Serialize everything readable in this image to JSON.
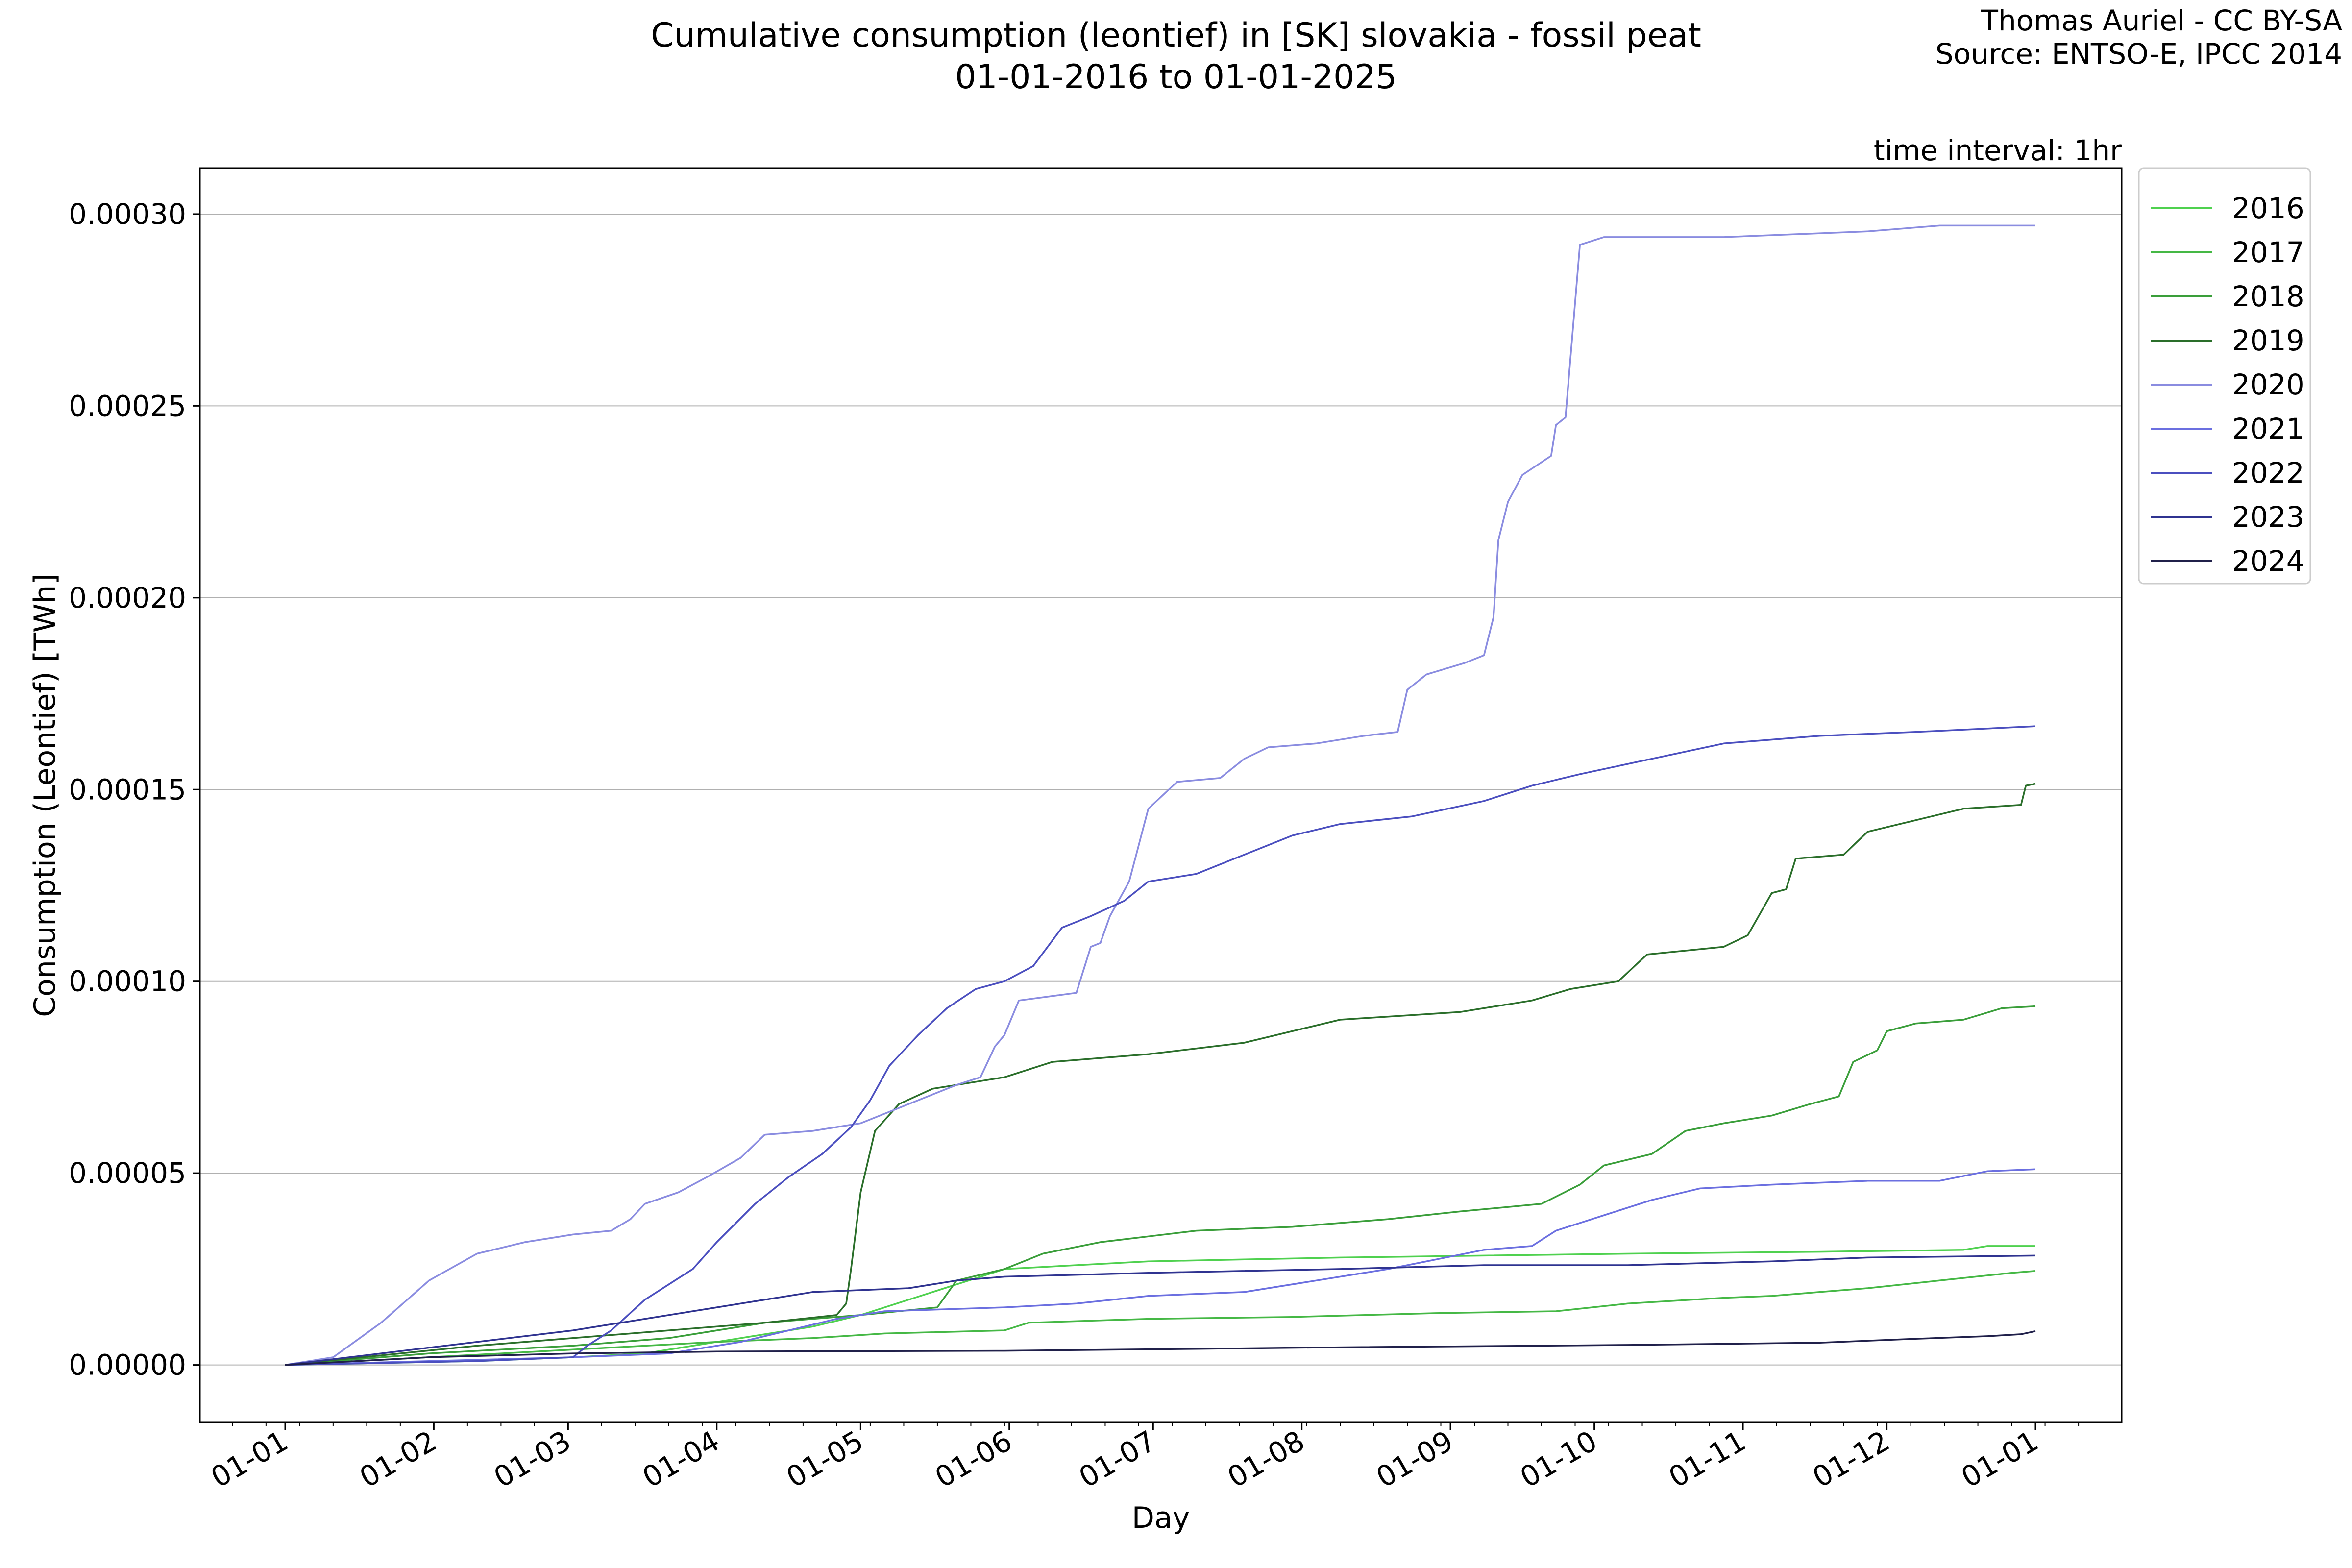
{
  "title_line1": "Cumulative consumption (leontief) in [SK] slovakia - fossil peat",
  "title_line2": "01-01-2016 to 01-01-2025",
  "credit_line1": "Thomas Auriel - CC BY-SA",
  "credit_line2": "Source: ENTSO-E, IPCC 2014",
  "time_interval": "time interval: 1hr",
  "chart_data": {
    "type": "line",
    "xlabel": "Day",
    "ylabel": "Consumption (Leontief) [TWh]",
    "xlim": [
      0,
      365
    ],
    "ylim": [
      -1.5e-05,
      0.000312
    ],
    "grid": "horizontal",
    "legend_position": "outside-right",
    "x_ticks": [
      {
        "label": "01-01",
        "day": 0
      },
      {
        "label": "01-02",
        "day": 31
      },
      {
        "label": "01-03",
        "day": 59
      },
      {
        "label": "01-04",
        "day": 90
      },
      {
        "label": "01-05",
        "day": 120
      },
      {
        "label": "01-06",
        "day": 151
      },
      {
        "label": "01-07",
        "day": 181
      },
      {
        "label": "01-08",
        "day": 212
      },
      {
        "label": "01-09",
        "day": 243
      },
      {
        "label": "01-10",
        "day": 273
      },
      {
        "label": "01-11",
        "day": 304
      },
      {
        "label": "01-12",
        "day": 334
      },
      {
        "label": "01-01",
        "day": 365
      }
    ],
    "y_ticks": [
      {
        "label": "0.00000",
        "value": 0
      },
      {
        "label": "0.00005",
        "value": 5e-05
      },
      {
        "label": "0.00010",
        "value": 0.0001
      },
      {
        "label": "0.00015",
        "value": 0.00015
      },
      {
        "label": "0.00020",
        "value": 0.0002
      },
      {
        "label": "0.00025",
        "value": 0.00025
      },
      {
        "label": "0.00030",
        "value": 0.0003
      }
    ],
    "series": [
      {
        "name": "2016",
        "color": "#4fd14f",
        "points": [
          [
            0,
            0
          ],
          [
            20,
            5e-07
          ],
          [
            40,
            1e-06
          ],
          [
            60,
            2e-06
          ],
          [
            75,
            3e-06
          ],
          [
            85,
            5e-06
          ],
          [
            95,
            7e-06
          ],
          [
            110,
            1e-05
          ],
          [
            120,
            1.3e-05
          ],
          [
            130,
            1.7e-05
          ],
          [
            140,
            2.1e-05
          ],
          [
            150,
            2.5e-05
          ],
          [
            165,
            2.6e-05
          ],
          [
            180,
            2.7e-05
          ],
          [
            200,
            2.75e-05
          ],
          [
            220,
            2.8e-05
          ],
          [
            250,
            2.85e-05
          ],
          [
            280,
            2.9e-05
          ],
          [
            320,
            2.95e-05
          ],
          [
            350,
            3e-05
          ],
          [
            355,
            3.1e-05
          ],
          [
            365,
            3.1e-05
          ]
        ]
      },
      {
        "name": "2017",
        "color": "#45b845",
        "points": [
          [
            0,
            0
          ],
          [
            30,
            2e-06
          ],
          [
            60,
            4e-06
          ],
          [
            90,
            6e-06
          ],
          [
            110,
            7e-06
          ],
          [
            125,
            8.2e-06
          ],
          [
            150,
            9e-06
          ],
          [
            155,
            1.1e-05
          ],
          [
            180,
            1.2e-05
          ],
          [
            210,
            1.25e-05
          ],
          [
            240,
            1.35e-05
          ],
          [
            265,
            1.4e-05
          ],
          [
            280,
            1.6e-05
          ],
          [
            300,
            1.75e-05
          ],
          [
            310,
            1.8e-05
          ],
          [
            320,
            1.9e-05
          ],
          [
            330,
            2e-05
          ],
          [
            345,
            2.2e-05
          ],
          [
            360,
            2.4e-05
          ],
          [
            365,
            2.45e-05
          ]
        ]
      },
      {
        "name": "2018",
        "color": "#3a9e3a",
        "points": [
          [
            0,
            0
          ],
          [
            30,
            3e-06
          ],
          [
            60,
            5e-06
          ],
          [
            80,
            7e-06
          ],
          [
            100,
            1.1e-05
          ],
          [
            120,
            1.3e-05
          ],
          [
            136,
            1.5e-05
          ],
          [
            140,
            2.2e-05
          ],
          [
            150,
            2.5e-05
          ],
          [
            158,
            2.9e-05
          ],
          [
            170,
            3.2e-05
          ],
          [
            180,
            3.35e-05
          ],
          [
            190,
            3.5e-05
          ],
          [
            210,
            3.6e-05
          ],
          [
            230,
            3.8e-05
          ],
          [
            245,
            4e-05
          ],
          [
            262,
            4.2e-05
          ],
          [
            270,
            4.7e-05
          ],
          [
            275,
            5.2e-05
          ],
          [
            285,
            5.5e-05
          ],
          [
            292,
            6.1e-05
          ],
          [
            300,
            6.3e-05
          ],
          [
            310,
            6.5e-05
          ],
          [
            318,
            6.8e-05
          ],
          [
            324,
            7e-05
          ],
          [
            327,
            7.9e-05
          ],
          [
            332,
            8.2e-05
          ],
          [
            334,
            8.7e-05
          ],
          [
            340,
            8.9e-05
          ],
          [
            350,
            9e-05
          ],
          [
            358,
            9.3e-05
          ],
          [
            365,
            9.35e-05
          ]
        ]
      },
      {
        "name": "2019",
        "color": "#2a6e2a",
        "points": [
          [
            0,
            0
          ],
          [
            40,
            5e-06
          ],
          [
            60,
            7e-06
          ],
          [
            80,
            9e-06
          ],
          [
            100,
            1.1e-05
          ],
          [
            115,
            1.3e-05
          ],
          [
            117,
            1.6e-05
          ],
          [
            118,
            2.5e-05
          ],
          [
            120,
            4.5e-05
          ],
          [
            123,
            6.1e-05
          ],
          [
            128,
            6.8e-05
          ],
          [
            135,
            7.2e-05
          ],
          [
            150,
            7.5e-05
          ],
          [
            160,
            7.9e-05
          ],
          [
            180,
            8.1e-05
          ],
          [
            200,
            8.4e-05
          ],
          [
            220,
            9e-05
          ],
          [
            245,
            9.2e-05
          ],
          [
            260,
            9.5e-05
          ],
          [
            268,
            9.8e-05
          ],
          [
            278,
            0.0001
          ],
          [
            284,
            0.000107
          ],
          [
            300,
            0.000109
          ],
          [
            305,
            0.000112
          ],
          [
            310,
            0.000123
          ],
          [
            313,
            0.000124
          ],
          [
            315,
            0.000132
          ],
          [
            325,
            0.000133
          ],
          [
            330,
            0.000139
          ],
          [
            340,
            0.000142
          ],
          [
            350,
            0.000145
          ],
          [
            362,
            0.000146
          ],
          [
            363,
            0.000151
          ],
          [
            365,
            0.0001515
          ]
        ]
      },
      {
        "name": "2020",
        "color": "#8a8ce0",
        "points": [
          [
            0,
            0
          ],
          [
            10,
            2e-06
          ],
          [
            20,
            1.1e-05
          ],
          [
            30,
            2.2e-05
          ],
          [
            40,
            2.9e-05
          ],
          [
            50,
            3.2e-05
          ],
          [
            60,
            3.4e-05
          ],
          [
            68,
            3.5e-05
          ],
          [
            72,
            3.8e-05
          ],
          [
            75,
            4.2e-05
          ],
          [
            82,
            4.5e-05
          ],
          [
            88,
            4.9e-05
          ],
          [
            95,
            5.4e-05
          ],
          [
            100,
            6e-05
          ],
          [
            110,
            6.1e-05
          ],
          [
            120,
            6.3e-05
          ],
          [
            130,
            6.8e-05
          ],
          [
            140,
            7.3e-05
          ],
          [
            145,
            7.5e-05
          ],
          [
            148,
            8.3e-05
          ],
          [
            150,
            8.6e-05
          ],
          [
            153,
            9.5e-05
          ],
          [
            165,
            9.7e-05
          ],
          [
            168,
            0.000109
          ],
          [
            170,
            0.00011
          ],
          [
            172,
            0.000117
          ],
          [
            176,
            0.000126
          ],
          [
            180,
            0.000145
          ],
          [
            186,
            0.000152
          ],
          [
            195,
            0.000153
          ],
          [
            200,
            0.000158
          ],
          [
            205,
            0.000161
          ],
          [
            215,
            0.000162
          ],
          [
            225,
            0.000164
          ],
          [
            232,
            0.000165
          ],
          [
            234,
            0.000176
          ],
          [
            238,
            0.00018
          ],
          [
            246,
            0.000183
          ],
          [
            250,
            0.000185
          ],
          [
            252,
            0.000195
          ],
          [
            253,
            0.000215
          ],
          [
            255,
            0.000225
          ],
          [
            258,
            0.000232
          ],
          [
            264,
            0.000237
          ],
          [
            265,
            0.000245
          ],
          [
            267,
            0.000247
          ],
          [
            270,
            0.000292
          ],
          [
            275,
            0.000294
          ],
          [
            300,
            0.000294
          ],
          [
            330,
            0.0002955
          ],
          [
            345,
            0.000297
          ],
          [
            365,
            0.000297
          ]
        ]
      },
      {
        "name": "2021",
        "color": "#6b6fe0",
        "points": [
          [
            0,
            0
          ],
          [
            30,
            1e-06
          ],
          [
            60,
            2e-06
          ],
          [
            80,
            3e-06
          ],
          [
            95,
            6e-06
          ],
          [
            105,
            9e-06
          ],
          [
            115,
            1.2e-05
          ],
          [
            125,
            1.4e-05
          ],
          [
            150,
            1.5e-05
          ],
          [
            165,
            1.6e-05
          ],
          [
            180,
            1.8e-05
          ],
          [
            200,
            1.9e-05
          ],
          [
            215,
            2.2e-05
          ],
          [
            230,
            2.5e-05
          ],
          [
            250,
            3e-05
          ],
          [
            260,
            3.1e-05
          ],
          [
            265,
            3.5e-05
          ],
          [
            275,
            3.9e-05
          ],
          [
            285,
            4.3e-05
          ],
          [
            295,
            4.6e-05
          ],
          [
            310,
            4.7e-05
          ],
          [
            330,
            4.8e-05
          ],
          [
            345,
            4.8e-05
          ],
          [
            355,
            5.05e-05
          ],
          [
            365,
            5.1e-05
          ]
        ]
      },
      {
        "name": "2022",
        "color": "#4b4fbf",
        "points": [
          [
            0,
            0
          ],
          [
            40,
            1e-06
          ],
          [
            60,
            2e-06
          ],
          [
            63,
            5e-06
          ],
          [
            68,
            9e-06
          ],
          [
            75,
            1.7e-05
          ],
          [
            85,
            2.5e-05
          ],
          [
            90,
            3.2e-05
          ],
          [
            98,
            4.2e-05
          ],
          [
            105,
            4.9e-05
          ],
          [
            112,
            5.5e-05
          ],
          [
            118,
            6.2e-05
          ],
          [
            122,
            6.9e-05
          ],
          [
            126,
            7.8e-05
          ],
          [
            132,
            8.6e-05
          ],
          [
            138,
            9.3e-05
          ],
          [
            144,
            9.8e-05
          ],
          [
            150,
            0.0001
          ],
          [
            156,
            0.000104
          ],
          [
            162,
            0.000114
          ],
          [
            168,
            0.000117
          ],
          [
            175,
            0.000121
          ],
          [
            180,
            0.000126
          ],
          [
            190,
            0.000128
          ],
          [
            200,
            0.000133
          ],
          [
            210,
            0.000138
          ],
          [
            220,
            0.000141
          ],
          [
            235,
            0.000143
          ],
          [
            250,
            0.000147
          ],
          [
            260,
            0.000151
          ],
          [
            270,
            0.000154
          ],
          [
            285,
            0.000158
          ],
          [
            300,
            0.000162
          ],
          [
            320,
            0.000164
          ],
          [
            340,
            0.000165
          ],
          [
            365,
            0.0001665
          ]
        ]
      },
      {
        "name": "2023",
        "color": "#2f3390",
        "points": [
          [
            0,
            0
          ],
          [
            20,
            3e-06
          ],
          [
            40,
            6e-06
          ],
          [
            60,
            9e-06
          ],
          [
            75,
            1.2e-05
          ],
          [
            90,
            1.5e-05
          ],
          [
            110,
            1.9e-05
          ],
          [
            130,
            2e-05
          ],
          [
            140,
            2.2e-05
          ],
          [
            150,
            2.3e-05
          ],
          [
            180,
            2.4e-05
          ],
          [
            220,
            2.5e-05
          ],
          [
            250,
            2.6e-05
          ],
          [
            280,
            2.6e-05
          ],
          [
            310,
            2.7e-05
          ],
          [
            330,
            2.8e-05
          ],
          [
            365,
            2.85e-05
          ]
        ]
      },
      {
        "name": "2024",
        "color": "#20204a",
        "points": [
          [
            0,
            0
          ],
          [
            30,
            2e-06
          ],
          [
            60,
            3e-06
          ],
          [
            90,
            3.5e-06
          ],
          [
            150,
            3.7e-06
          ],
          [
            190,
            4.2e-06
          ],
          [
            220,
            4.6e-06
          ],
          [
            280,
            5.2e-06
          ],
          [
            320,
            5.8e-06
          ],
          [
            340,
            6.8e-06
          ],
          [
            355,
            7.5e-06
          ],
          [
            362,
            8e-06
          ],
          [
            365,
            8.8e-06
          ]
        ]
      }
    ]
  }
}
